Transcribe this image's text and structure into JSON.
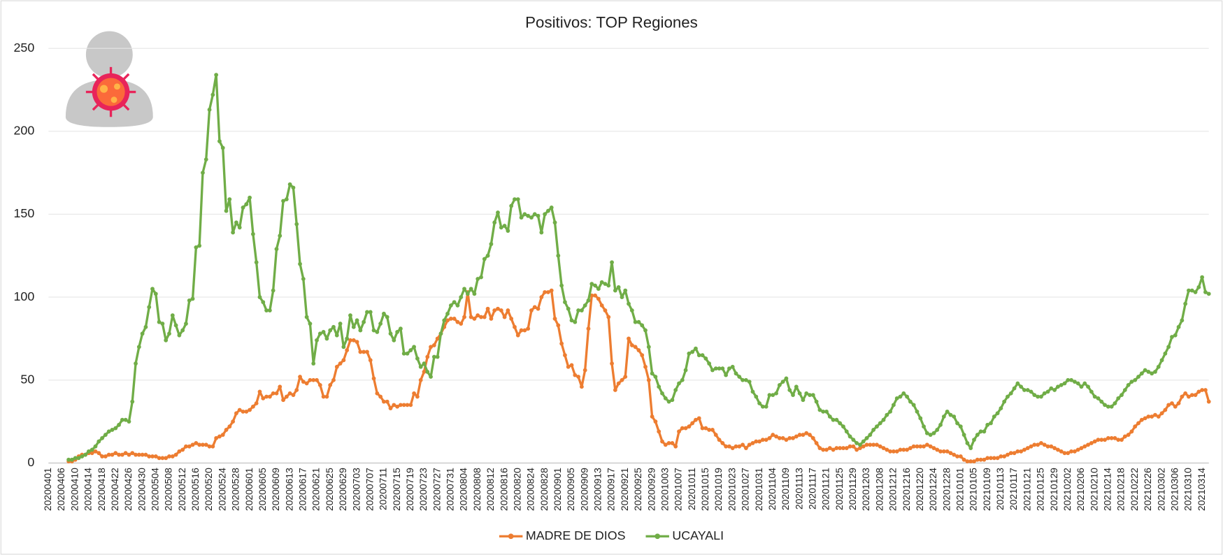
{
  "chart_data": {
    "type": "line",
    "title": "Positivos: TOP Regiones",
    "categories": [
      "20200401",
      null,
      null,
      null,
      "20200406",
      null,
      null,
      null,
      "20200410",
      null,
      null,
      null,
      "20200414",
      null,
      null,
      null,
      "20200418",
      null,
      null,
      null,
      "20200422",
      null,
      null,
      null,
      "20200426",
      null,
      null,
      null,
      "20200430",
      null,
      null,
      null,
      "20200504",
      null,
      null,
      null,
      "20200508",
      null,
      null,
      null,
      "20200512",
      null,
      null,
      null,
      "20200516",
      null,
      null,
      null,
      "20200520",
      null,
      null,
      null,
      "20200524",
      null,
      null,
      null,
      "20200528",
      null,
      null,
      null,
      "20200601",
      null,
      null,
      null,
      "20200605",
      null,
      null,
      null,
      "20200609",
      null,
      null,
      null,
      "20200613",
      null,
      null,
      null,
      "20200617",
      null,
      null,
      null,
      "20200621",
      null,
      null,
      null,
      "20200625",
      null,
      null,
      null,
      "20200629",
      null,
      null,
      null,
      "20200703",
      null,
      null,
      null,
      "20200707",
      null,
      null,
      null,
      "20200711",
      null,
      null,
      null,
      "20200715",
      null,
      null,
      null,
      "20200719",
      null,
      null,
      null,
      "20200723",
      null,
      null,
      null,
      "20200727",
      null,
      null,
      null,
      "20200731",
      null,
      null,
      null,
      "20200804",
      null,
      null,
      null,
      "20200808",
      null,
      null,
      null,
      "20200812",
      null,
      null,
      null,
      "20200816",
      null,
      null,
      null,
      "20200820",
      null,
      null,
      null,
      "20200824",
      null,
      null,
      null,
      "20200828",
      null,
      null,
      null,
      "20200901",
      null,
      null,
      null,
      "20200905",
      null,
      null,
      null,
      "20200909",
      null,
      null,
      null,
      "20200913",
      null,
      null,
      null,
      "20200917",
      null,
      null,
      null,
      "20200921",
      null,
      null,
      null,
      "20200925",
      null,
      null,
      null,
      "20200929",
      null,
      null,
      null,
      "20201003",
      null,
      null,
      null,
      "20201007",
      null,
      null,
      null,
      "20201011",
      null,
      null,
      null,
      "20201015",
      null,
      null,
      null,
      "20201019",
      null,
      null,
      null,
      "20201023",
      null,
      null,
      null,
      "20201027",
      null,
      null,
      null,
      "20201031",
      null,
      null,
      null,
      "20201104",
      null,
      null,
      null,
      "20201109",
      null,
      null,
      null,
      "20201113",
      null,
      null,
      null,
      "20201117",
      null,
      null,
      null,
      "20201121",
      null,
      null,
      null,
      "20201125",
      null,
      null,
      null,
      "20201129",
      null,
      null,
      null,
      "20201203",
      null,
      null,
      null,
      "20201208",
      null,
      null,
      null,
      "20201212",
      null,
      null,
      null,
      "20201216",
      null,
      null,
      null,
      "20201220",
      null,
      null,
      null,
      "20201224",
      null,
      null,
      null,
      "20201228",
      null,
      null,
      null,
      "20210101",
      null,
      null,
      null,
      "20210105",
      null,
      null,
      null,
      "20210109",
      null,
      null,
      null,
      "20210113",
      null,
      null,
      null,
      "20210117",
      null,
      null,
      null,
      "20210121",
      null,
      null,
      null,
      "20210125",
      null,
      null,
      null,
      "20210129",
      null,
      null,
      null,
      "20210202",
      null,
      null,
      null,
      "20210206",
      null,
      null,
      null,
      "20210210",
      null,
      null,
      null,
      "20210214",
      null,
      null,
      null,
      "20210218",
      null,
      null,
      null,
      "20210222",
      null,
      null,
      null,
      "20210226",
      null,
      null,
      null,
      "20210302",
      null,
      null,
      null,
      "20210306",
      null,
      null,
      null,
      "20210310",
      null,
      null,
      null,
      "20210314",
      null,
      null
    ],
    "series": [
      {
        "name": "MADRE DE DIOS",
        "color": "#ed7d31",
        "values": [
          null,
          null,
          null,
          null,
          null,
          null,
          1,
          1,
          2,
          4,
          5,
          5,
          6,
          6,
          7,
          6,
          4,
          4,
          5,
          5,
          6,
          5,
          5,
          6,
          5,
          6,
          5,
          5,
          5,
          5,
          4,
          4,
          4,
          3,
          3,
          3,
          4,
          4,
          5,
          7,
          8,
          10,
          10,
          11,
          12,
          11,
          11,
          11,
          10,
          10,
          15,
          16,
          17,
          20,
          22,
          25,
          30,
          32,
          31,
          31,
          32,
          34,
          36,
          43,
          39,
          40,
          40,
          42,
          42,
          46,
          38,
          40,
          42,
          41,
          44,
          52,
          49,
          48,
          50,
          50,
          50,
          47,
          40,
          40,
          47,
          50,
          58,
          60,
          62,
          68,
          74,
          74,
          73,
          67,
          67,
          67,
          62,
          51,
          42,
          40,
          37,
          37,
          33,
          35,
          34,
          35,
          35,
          35,
          35,
          42,
          40,
          50,
          55,
          64,
          70,
          71,
          75,
          78,
          82,
          86,
          87,
          87,
          85,
          84,
          88,
          103,
          88,
          87,
          89,
          88,
          88,
          93,
          87,
          92,
          93,
          92,
          88,
          92,
          87,
          82,
          77,
          80,
          80,
          81,
          92,
          94,
          93,
          100,
          103,
          103,
          104,
          87,
          83,
          72,
          65,
          58,
          59,
          53,
          52,
          46,
          56,
          81,
          101,
          101,
          99,
          95,
          92,
          88,
          60,
          44,
          48,
          50,
          52,
          75,
          71,
          70,
          68,
          65,
          58,
          50,
          28,
          25,
          19,
          13,
          11,
          12,
          12,
          10,
          19,
          21,
          21,
          22,
          24,
          26,
          27,
          21,
          21,
          20,
          20,
          17,
          14,
          12,
          10,
          10,
          9,
          10,
          10,
          11,
          9,
          11,
          12,
          13,
          13,
          14,
          14,
          15,
          17,
          16,
          15,
          15,
          14,
          15,
          15,
          16,
          17,
          17,
          18,
          17,
          15,
          12,
          9,
          8,
          8,
          9,
          8,
          9,
          9,
          9,
          9,
          10,
          10,
          8,
          9,
          10,
          11,
          11,
          11,
          11,
          10,
          9,
          8,
          7,
          7,
          7,
          8,
          8,
          8,
          9,
          10,
          10,
          10,
          10,
          11,
          10,
          9,
          8,
          7,
          7,
          7,
          6,
          5,
          4,
          4,
          2,
          1,
          1,
          1,
          2,
          2,
          2,
          3,
          3,
          3,
          3,
          4,
          4,
          5,
          6,
          6,
          7,
          7,
          8,
          9,
          10,
          11,
          11,
          12,
          11,
          10,
          10,
          9,
          8,
          7,
          6,
          6,
          7,
          7,
          8,
          9,
          10,
          11,
          12,
          13,
          14,
          14,
          14,
          15,
          15,
          15,
          14,
          14,
          16,
          17,
          19,
          22,
          24,
          26,
          27,
          28,
          28,
          29,
          28,
          30,
          32,
          35,
          36,
          34,
          36,
          40,
          42,
          40,
          41,
          41,
          43,
          44,
          44,
          37
        ]
      },
      {
        "name": "UCAYALI",
        "color": "#70ad47",
        "values": [
          null,
          null,
          null,
          null,
          null,
          null,
          2,
          2,
          3,
          3,
          4,
          5,
          7,
          8,
          10,
          13,
          15,
          17,
          19,
          20,
          21,
          23,
          26,
          26,
          25,
          37,
          60,
          70,
          78,
          82,
          94,
          105,
          102,
          85,
          84,
          74,
          78,
          89,
          83,
          77,
          80,
          84,
          98,
          99,
          130,
          131,
          175,
          183,
          213,
          222,
          234,
          194,
          190,
          152,
          159,
          139,
          145,
          142,
          154,
          156,
          160,
          138,
          121,
          100,
          97,
          92,
          92,
          104,
          129,
          137,
          158,
          159,
          168,
          166,
          144,
          120,
          111,
          88,
          84,
          60,
          74,
          78,
          79,
          75,
          80,
          82,
          77,
          84,
          70,
          75,
          89,
          82,
          86,
          80,
          85,
          91,
          91,
          80,
          79,
          84,
          90,
          88,
          78,
          74,
          79,
          81,
          66,
          66,
          68,
          70,
          63,
          58,
          60,
          55,
          52,
          64,
          64,
          78,
          86,
          90,
          95,
          97,
          95,
          100,
          105,
          102,
          105,
          102,
          111,
          112,
          123,
          125,
          132,
          145,
          151,
          142,
          143,
          140,
          155,
          159,
          159,
          148,
          150,
          149,
          148,
          150,
          149,
          139,
          150,
          152,
          154,
          145,
          125,
          107,
          97,
          93,
          86,
          85,
          92,
          92,
          95,
          98,
          108,
          107,
          105,
          109,
          108,
          107,
          121,
          104,
          106,
          100,
          104,
          96,
          92,
          85,
          85,
          83,
          80,
          70,
          54,
          52,
          46,
          42,
          39,
          37,
          38,
          44,
          48,
          50,
          56,
          66,
          67,
          69,
          65,
          65,
          63,
          60,
          56,
          57,
          57,
          57,
          53,
          57,
          58,
          54,
          52,
          50,
          50,
          49,
          43,
          40,
          36,
          34,
          34,
          41,
          41,
          42,
          47,
          49,
          51,
          44,
          41,
          46,
          42,
          38,
          42,
          41,
          41,
          37,
          32,
          31,
          31,
          28,
          26,
          26,
          24,
          22,
          19,
          16,
          14,
          12,
          11,
          13,
          15,
          17,
          20,
          22,
          24,
          26,
          29,
          31,
          35,
          39,
          40,
          42,
          40,
          37,
          35,
          31,
          27,
          22,
          18,
          17,
          18,
          20,
          23,
          28,
          31,
          29,
          28,
          24,
          22,
          17,
          12,
          9,
          14,
          17,
          19,
          19,
          23,
          24,
          28,
          30,
          33,
          37,
          40,
          42,
          45,
          48,
          46,
          44,
          44,
          43,
          41,
          40,
          40,
          42,
          43,
          45,
          44,
          46,
          47,
          48,
          50,
          50,
          49,
          48,
          46,
          48,
          46,
          43,
          40,
          39,
          37,
          35,
          34,
          34,
          36,
          39,
          41,
          44,
          47,
          49,
          50,
          52,
          54,
          56,
          55,
          54,
          55,
          58,
          62,
          66,
          70,
          76,
          77,
          82,
          86,
          96,
          104,
          104,
          103,
          106,
          112,
          103,
          102
        ]
      }
    ],
    "ylim": [
      0,
      250
    ],
    "yticks": [
      0,
      50,
      100,
      150,
      200,
      250
    ],
    "grid": true,
    "legend": "bottom"
  }
}
